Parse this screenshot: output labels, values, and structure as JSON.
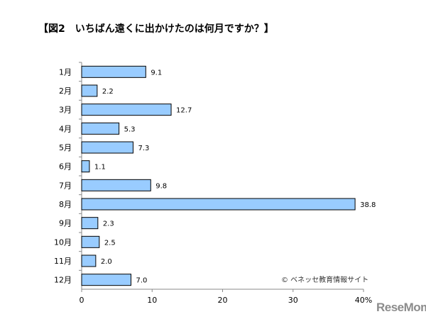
{
  "title": "【図2　いちばん遠くに出かけたのは何月ですか？】",
  "credit": "© ベネッセ教育情報サイト",
  "logo": "ReseMom",
  "chart_data": {
    "type": "bar",
    "orientation": "horizontal",
    "categories": [
      "1月",
      "2月",
      "3月",
      "4月",
      "5月",
      "6月",
      "7月",
      "8月",
      "9月",
      "10月",
      "11月",
      "12月"
    ],
    "values": [
      9.1,
      2.2,
      12.7,
      5.3,
      7.3,
      1.1,
      9.8,
      38.8,
      2.3,
      2.5,
      2.0,
      7.0
    ],
    "value_labels": [
      "9.1",
      "2.2",
      "12.7",
      "5.3",
      "7.3",
      "1.1",
      "9.8",
      "38.8",
      "2.3",
      "2.5",
      "2.0",
      "7.0"
    ],
    "xticks": [
      "0",
      "10",
      "20",
      "30",
      "40%"
    ],
    "xlim": [
      0,
      40
    ],
    "grid": false,
    "bar_color": "#99ccff",
    "legend": "none"
  }
}
